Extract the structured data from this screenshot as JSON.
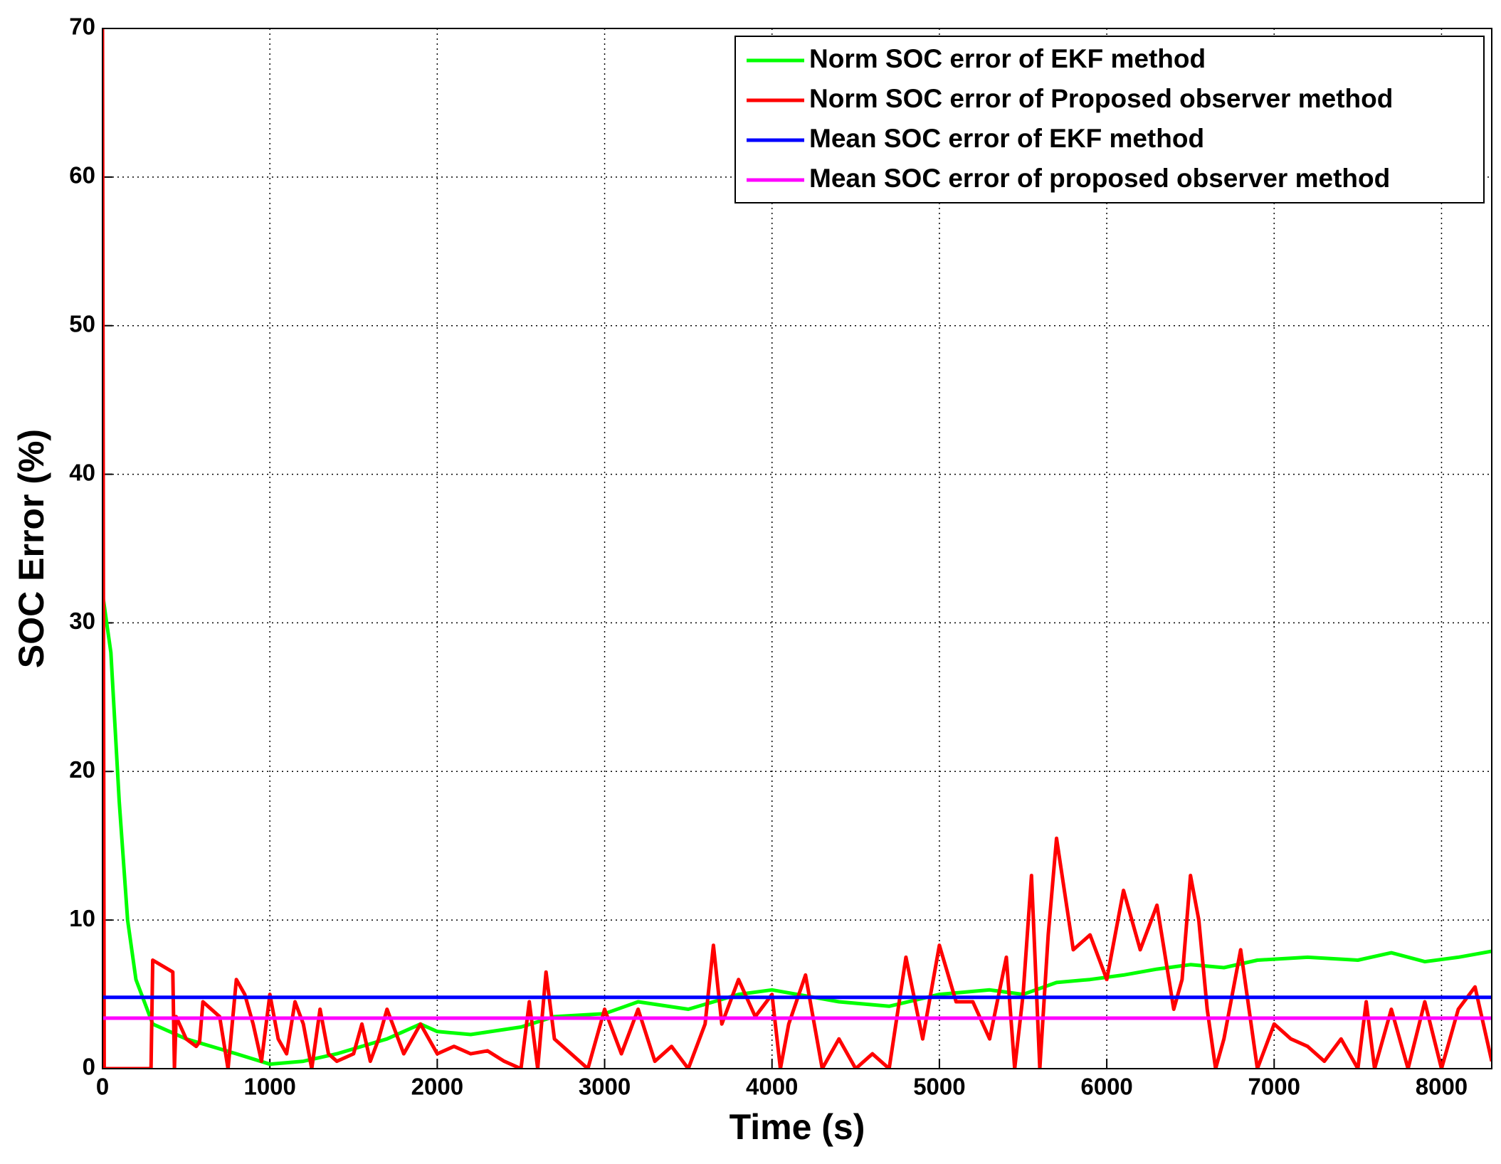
{
  "chart_data": {
    "type": "line",
    "xlabel": "Time (s)",
    "ylabel": "SOC Error (%)",
    "xlim": [
      0,
      8300
    ],
    "xticks": [
      0,
      1000,
      2000,
      3000,
      4000,
      5000,
      6000,
      7000,
      8000
    ],
    "ylim": [
      0,
      70
    ],
    "yticks": [
      0,
      10,
      20,
      30,
      40,
      50,
      60,
      70
    ],
    "grid": true,
    "legend": "upper right",
    "series": [
      {
        "name": "Norm SOC error of EKF method",
        "color": "#00ff00",
        "x": [
          0,
          50,
          100,
          150,
          200,
          300,
          500,
          800,
          1000,
          1200,
          1400,
          1700,
          1900,
          2000,
          2200,
          2500,
          2700,
          3000,
          3200,
          3500,
          3800,
          4000,
          4400,
          4700,
          5000,
          5300,
          5500,
          5700,
          5900,
          6100,
          6300,
          6500,
          6700,
          6900,
          7200,
          7500,
          7700,
          7900,
          8100,
          8300
        ],
        "values": [
          32,
          28,
          18,
          10,
          6,
          3,
          2,
          1,
          0.3,
          0.5,
          1,
          2,
          3,
          2.5,
          2.3,
          2.8,
          3.5,
          3.7,
          4.5,
          4,
          5,
          5.3,
          4.5,
          4.2,
          5,
          5.3,
          5,
          5.8,
          6,
          6.3,
          6.7,
          7,
          6.8,
          7.3,
          7.5,
          7.3,
          7.8,
          7.2,
          7.5,
          7.9
        ]
      },
      {
        "name": "Norm SOC error of Proposed observer method",
        "color": "#ff0000",
        "x": [
          0,
          10,
          290,
          300,
          420,
          430,
          440,
          500,
          560,
          580,
          600,
          700,
          750,
          800,
          850,
          900,
          950,
          1000,
          1050,
          1100,
          1150,
          1200,
          1250,
          1300,
          1350,
          1400,
          1500,
          1550,
          1600,
          1650,
          1700,
          1800,
          1900,
          2000,
          2100,
          2200,
          2300,
          2400,
          2500,
          2550,
          2600,
          2650,
          2700,
          2800,
          2900,
          3000,
          3100,
          3200,
          3300,
          3400,
          3500,
          3600,
          3650,
          3700,
          3800,
          3900,
          4000,
          4050,
          4100,
          4200,
          4300,
          4400,
          4500,
          4600,
          4700,
          4800,
          4900,
          5000,
          5100,
          5200,
          5300,
          5400,
          5450,
          5500,
          5550,
          5600,
          5650,
          5700,
          5800,
          5900,
          6000,
          6100,
          6200,
          6300,
          6400,
          6450,
          6500,
          6550,
          6600,
          6650,
          6700,
          6800,
          6900,
          7000,
          7100,
          7200,
          7300,
          7400,
          7500,
          7550,
          7600,
          7700,
          7800,
          7900,
          8000,
          8100,
          8200,
          8300
        ],
        "values": [
          70,
          0,
          0,
          7.3,
          6.5,
          0,
          3.5,
          2,
          1.5,
          1.8,
          4.5,
          3.5,
          0,
          6,
          5,
          3,
          0.5,
          5,
          2,
          1,
          4.5,
          3,
          0,
          4,
          1,
          0.5,
          1,
          3,
          0.5,
          2,
          4,
          1,
          3,
          1,
          1.5,
          1,
          1.2,
          0.5,
          0,
          4.5,
          0,
          6.5,
          2,
          1,
          0,
          4,
          1,
          4,
          0.5,
          1.5,
          0,
          3,
          8.3,
          3,
          6,
          3.5,
          5,
          0,
          3,
          6.3,
          0,
          2,
          0,
          1,
          0,
          7.5,
          2,
          8.3,
          4.5,
          4.5,
          2,
          7.5,
          0,
          5,
          13,
          0,
          9,
          15.5,
          8,
          9,
          6,
          12,
          8,
          11,
          4,
          6,
          13,
          10,
          4,
          0,
          2,
          8,
          0,
          3,
          2,
          1.5,
          0.5,
          2,
          0,
          4.5,
          0,
          4,
          0,
          4.5,
          0,
          4,
          5.5,
          0.5
        ]
      },
      {
        "name": "Mean SOC error of EKF method",
        "color": "#0000ff",
        "x": [
          0,
          8300
        ],
        "values": [
          4.8,
          4.8
        ]
      },
      {
        "name": "Mean SOC error of proposed observer method",
        "color": "#ff00ff",
        "x": [
          0,
          8300
        ],
        "values": [
          3.4,
          3.4
        ]
      }
    ]
  }
}
